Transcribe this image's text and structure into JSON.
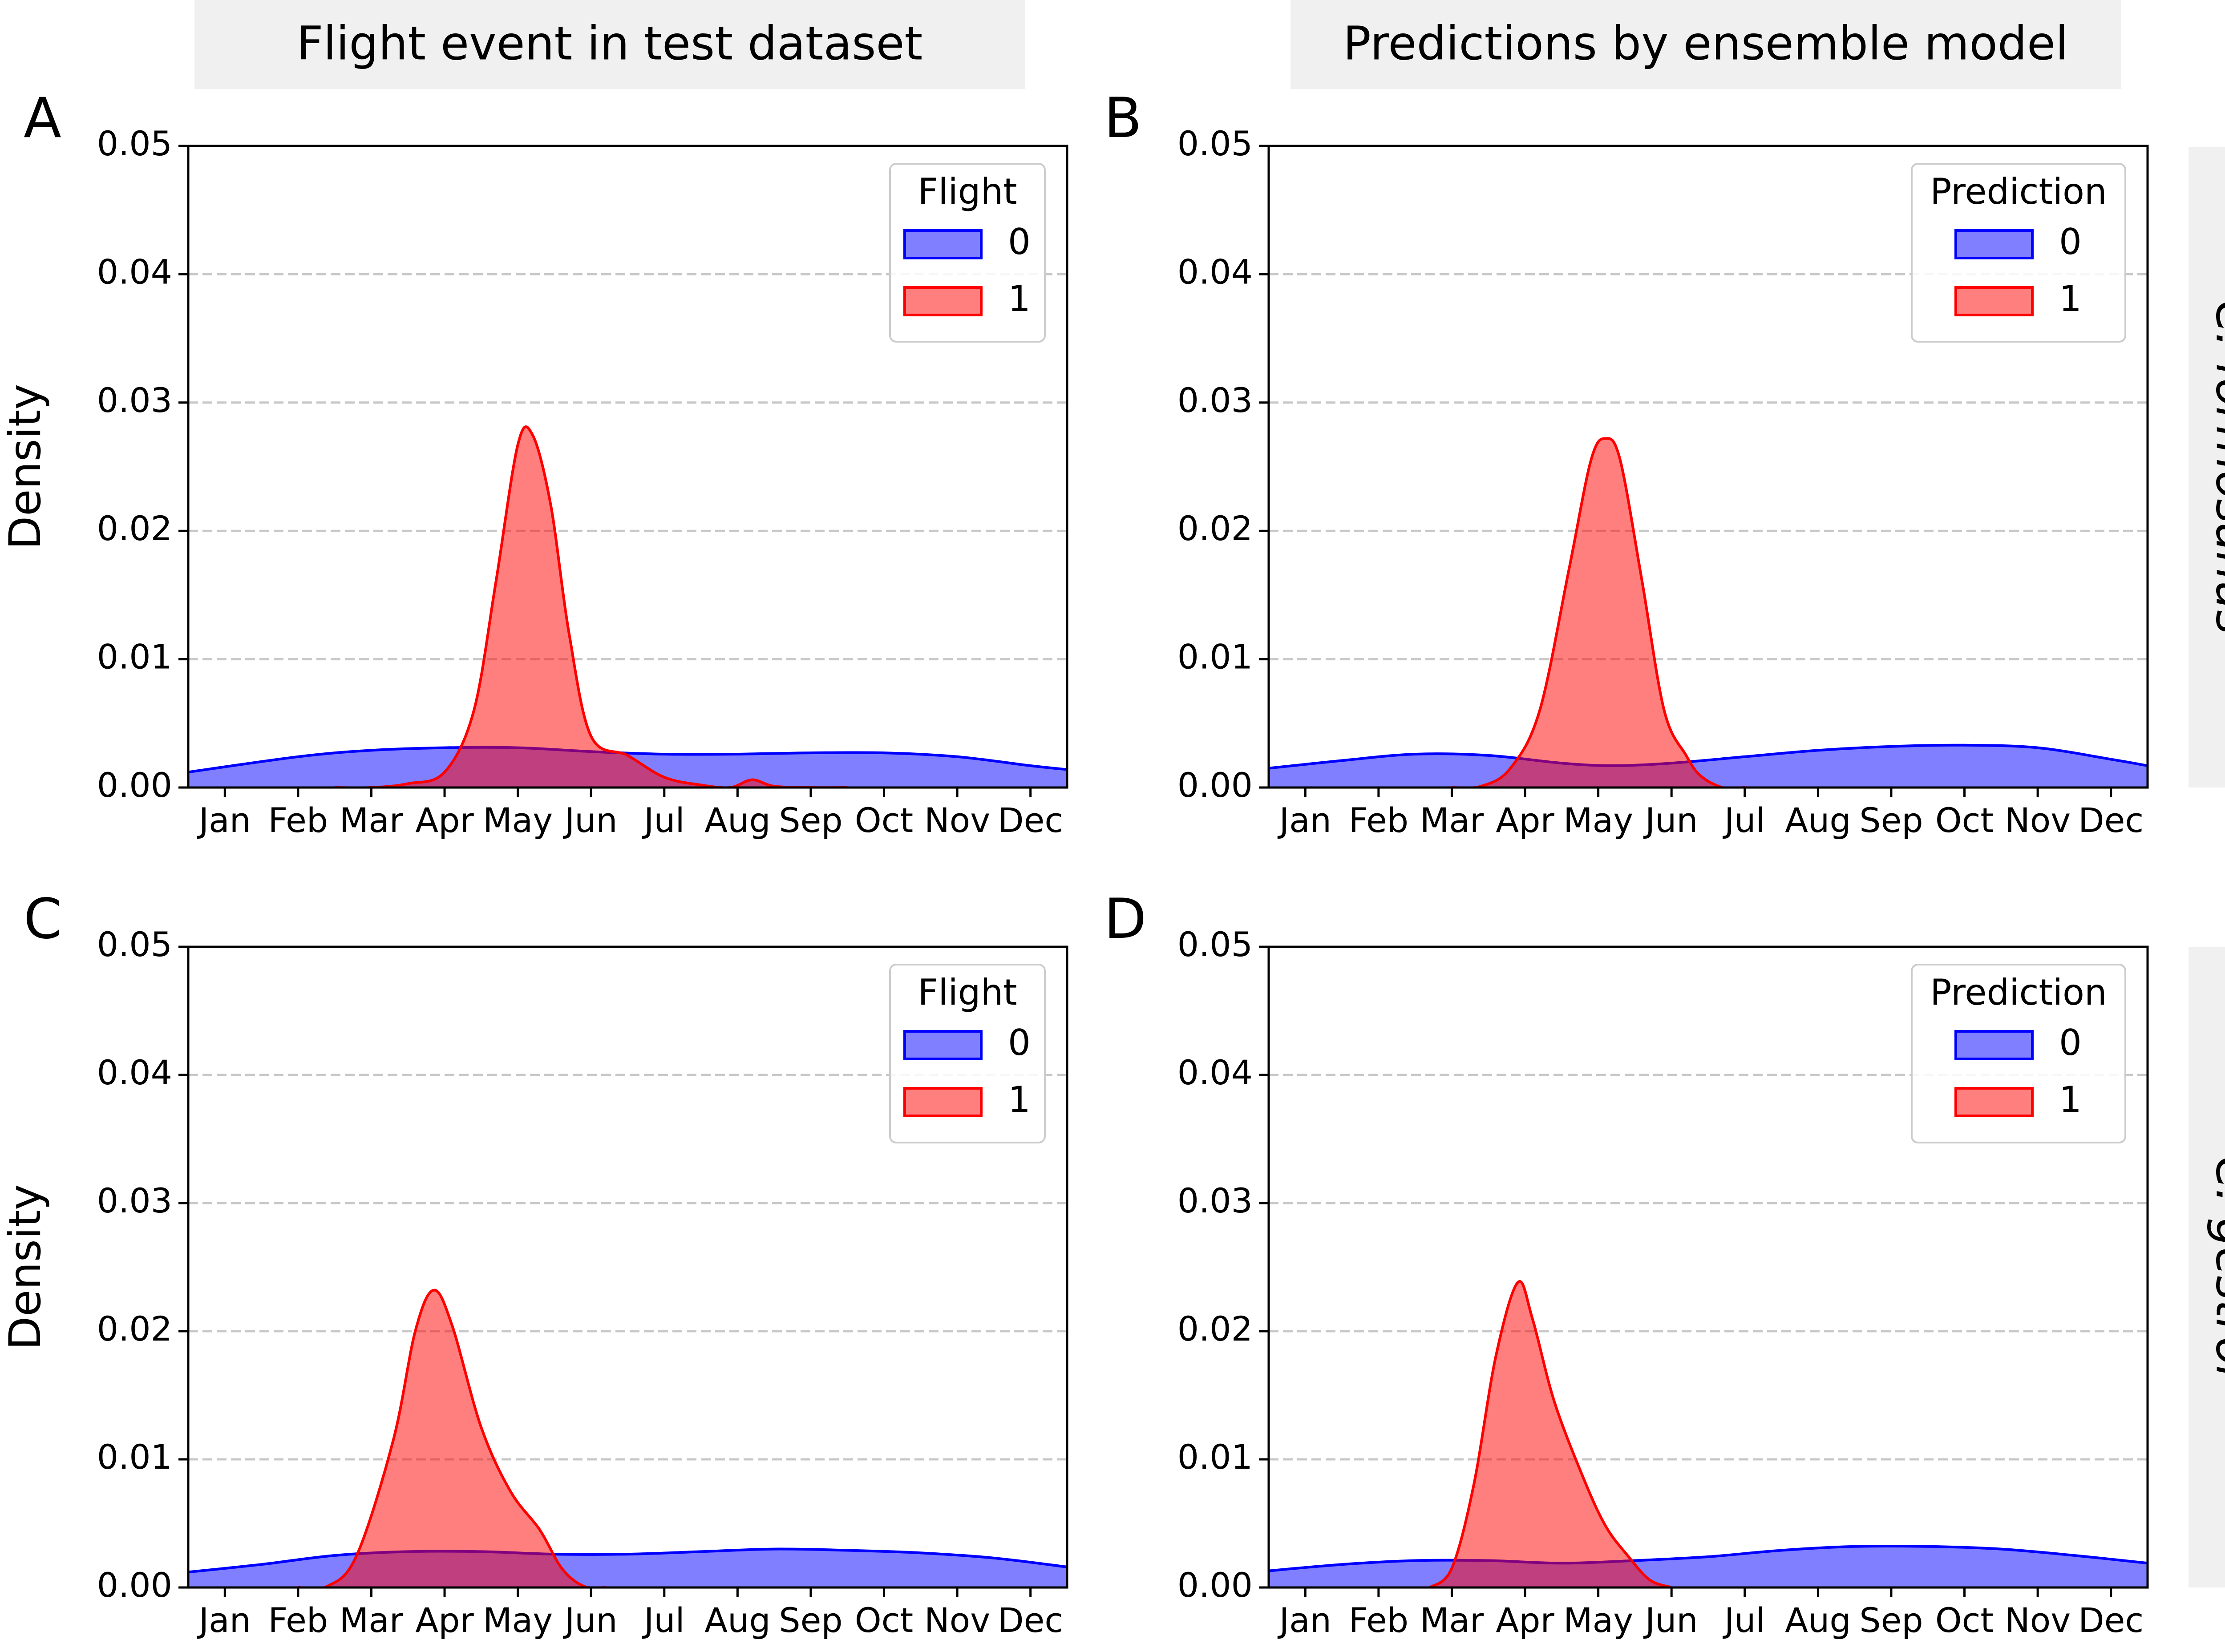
{
  "column_headers": [
    "Flight event in test dataset",
    "Predictions by ensemble model"
  ],
  "row_headers": [
    "C. formosanus",
    "C. gestroi"
  ],
  "colors": {
    "class_0": "#0000ff",
    "class_1": "#ff0000",
    "header_bg": "#f0f0f0",
    "grid": "#c8c8c8"
  },
  "chart_data": [
    {
      "panel": "A",
      "type": "area",
      "xlabel": "",
      "ylabel": "Density",
      "x_ticks": [
        "Jan",
        "Feb",
        "Mar",
        "Apr",
        "May",
        "Jun",
        "Jul",
        "Aug",
        "Sep",
        "Oct",
        "Nov",
        "Dec"
      ],
      "xlim": [
        0.5,
        12.5
      ],
      "ylim": [
        0,
        0.05
      ],
      "y_ticks": [
        "0.00",
        "0.01",
        "0.02",
        "0.03",
        "0.04",
        "0.05"
      ],
      "grid": "horizontal-dashed",
      "legend": {
        "title": "Flight",
        "position": "top-right",
        "entries": [
          "0",
          "1"
        ]
      },
      "series": [
        {
          "name": "0",
          "points": [
            [
              0.5,
              0.0012
            ],
            [
              2,
              0.0024
            ],
            [
              3,
              0.0029
            ],
            [
              4,
              0.0031
            ],
            [
              5,
              0.0031
            ],
            [
              6,
              0.0028
            ],
            [
              7,
              0.0026
            ],
            [
              8,
              0.0026
            ],
            [
              9,
              0.0027
            ],
            [
              10,
              0.0027
            ],
            [
              11,
              0.0024
            ],
            [
              12,
              0.0017
            ],
            [
              12.5,
              0.0014
            ]
          ]
        },
        {
          "name": "1",
          "points": [
            [
              2.5,
              0
            ],
            [
              3,
              0
            ],
            [
              3.5,
              0.0003
            ],
            [
              4,
              0.0012
            ],
            [
              4.4,
              0.006
            ],
            [
              4.7,
              0.016
            ],
            [
              5,
              0.0267
            ],
            [
              5.2,
              0.0275
            ],
            [
              5.45,
              0.022
            ],
            [
              5.7,
              0.012
            ],
            [
              6,
              0.004
            ],
            [
              6.5,
              0.0025
            ],
            [
              7,
              0.0008
            ],
            [
              7.5,
              0.0002
            ],
            [
              7.9,
              0
            ],
            [
              8.2,
              0.0006
            ],
            [
              8.5,
              0.0001
            ],
            [
              9,
              0
            ],
            [
              9.5,
              0
            ]
          ]
        }
      ]
    },
    {
      "panel": "B",
      "type": "area",
      "xlabel": "",
      "ylabel": "",
      "x_ticks": [
        "Jan",
        "Feb",
        "Mar",
        "Apr",
        "May",
        "Jun",
        "Jul",
        "Aug",
        "Sep",
        "Oct",
        "Nov",
        "Dec"
      ],
      "xlim": [
        0.5,
        12.5
      ],
      "ylim": [
        0,
        0.05
      ],
      "y_ticks": [
        "0.00",
        "0.01",
        "0.02",
        "0.03",
        "0.04",
        "0.05"
      ],
      "grid": "horizontal-dashed",
      "legend": {
        "title": "Prediction",
        "position": "top-right",
        "entries": [
          "0",
          "1"
        ]
      },
      "series": [
        {
          "name": "0",
          "points": [
            [
              0.5,
              0.0015
            ],
            [
              1.5,
              0.0021
            ],
            [
              2.5,
              0.0026
            ],
            [
              3.5,
              0.0025
            ],
            [
              4.5,
              0.0019
            ],
            [
              5.2,
              0.0017
            ],
            [
              6,
              0.0019
            ],
            [
              7,
              0.0024
            ],
            [
              8,
              0.0029
            ],
            [
              9,
              0.0032
            ],
            [
              10,
              0.0033
            ],
            [
              11,
              0.0031
            ],
            [
              12,
              0.0022
            ],
            [
              12.5,
              0.0017
            ]
          ]
        },
        {
          "name": "1",
          "points": [
            [
              3,
              0
            ],
            [
              3.4,
              0.0001
            ],
            [
              3.8,
              0.0015
            ],
            [
              4.2,
              0.006
            ],
            [
              4.6,
              0.017
            ],
            [
              4.9,
              0.0255
            ],
            [
              5.1,
              0.0272
            ],
            [
              5.3,
              0.0255
            ],
            [
              5.6,
              0.016
            ],
            [
              5.9,
              0.006
            ],
            [
              6.2,
              0.0025
            ],
            [
              6.4,
              0.0009
            ],
            [
              6.7,
              0
            ],
            [
              7,
              0
            ]
          ]
        }
      ]
    },
    {
      "panel": "C",
      "type": "area",
      "xlabel": "",
      "ylabel": "Density",
      "x_ticks": [
        "Jan",
        "Feb",
        "Mar",
        "Apr",
        "May",
        "Jun",
        "Jul",
        "Aug",
        "Sep",
        "Oct",
        "Nov",
        "Dec"
      ],
      "xlim": [
        0.5,
        12.5
      ],
      "ylim": [
        0,
        0.05
      ],
      "y_ticks": [
        "0.00",
        "0.01",
        "0.02",
        "0.03",
        "0.04",
        "0.05"
      ],
      "grid": "horizontal-dashed",
      "legend": {
        "title": "Flight",
        "position": "top-right",
        "entries": [
          "0",
          "1"
        ]
      },
      "series": [
        {
          "name": "0",
          "points": [
            [
              0.5,
              0.0012
            ],
            [
              1.5,
              0.0018
            ],
            [
              2.5,
              0.0025
            ],
            [
              3.5,
              0.0028
            ],
            [
              4.5,
              0.0028
            ],
            [
              5.5,
              0.0026
            ],
            [
              6.5,
              0.0026
            ],
            [
              7.5,
              0.0028
            ],
            [
              8.5,
              0.003
            ],
            [
              9.5,
              0.0029
            ],
            [
              10.5,
              0.0027
            ],
            [
              11.5,
              0.0023
            ],
            [
              12.5,
              0.0016
            ]
          ]
        },
        {
          "name": "1",
          "points": [
            [
              2,
              0
            ],
            [
              2.4,
              0.0001
            ],
            [
              2.8,
              0.0025
            ],
            [
              3.3,
              0.0115
            ],
            [
              3.6,
              0.02
            ],
            [
              3.85,
              0.0232
            ],
            [
              4.1,
              0.0205
            ],
            [
              4.5,
              0.0125
            ],
            [
              4.9,
              0.0075
            ],
            [
              5.3,
              0.0045
            ],
            [
              5.6,
              0.0015
            ],
            [
              5.9,
              0.0001
            ],
            [
              6.2,
              0
            ]
          ]
        }
      ]
    },
    {
      "panel": "D",
      "type": "area",
      "xlabel": "",
      "ylabel": "",
      "x_ticks": [
        "Jan",
        "Feb",
        "Mar",
        "Apr",
        "May",
        "Jun",
        "Jul",
        "Aug",
        "Sep",
        "Oct",
        "Nov",
        "Dec"
      ],
      "xlim": [
        0.5,
        12.5
      ],
      "ylim": [
        0,
        0.05
      ],
      "y_ticks": [
        "0.00",
        "0.01",
        "0.02",
        "0.03",
        "0.04",
        "0.05"
      ],
      "grid": "horizontal-dashed",
      "legend": {
        "title": "Prediction",
        "position": "top-right",
        "entries": [
          "0",
          "1"
        ]
      },
      "series": [
        {
          "name": "0",
          "points": [
            [
              0.5,
              0.0013
            ],
            [
              1.5,
              0.0018
            ],
            [
              2.5,
              0.0021
            ],
            [
              3.5,
              0.0021
            ],
            [
              4.5,
              0.0019
            ],
            [
              5.5,
              0.0021
            ],
            [
              6.5,
              0.0024
            ],
            [
              7.5,
              0.0029
            ],
            [
              8.5,
              0.0032
            ],
            [
              9.5,
              0.0032
            ],
            [
              10.5,
              0.003
            ],
            [
              11.5,
              0.0025
            ],
            [
              12.5,
              0.0019
            ]
          ]
        },
        {
          "name": "1",
          "points": [
            [
              2.7,
              0
            ],
            [
              3,
              0.0015
            ],
            [
              3.3,
              0.008
            ],
            [
              3.6,
              0.018
            ],
            [
              3.9,
              0.0238
            ],
            [
              4.1,
              0.021
            ],
            [
              4.4,
              0.0145
            ],
            [
              4.8,
              0.0085
            ],
            [
              5.1,
              0.0048
            ],
            [
              5.4,
              0.0025
            ],
            [
              5.7,
              0.0006
            ],
            [
              6,
              0
            ]
          ]
        }
      ]
    }
  ]
}
